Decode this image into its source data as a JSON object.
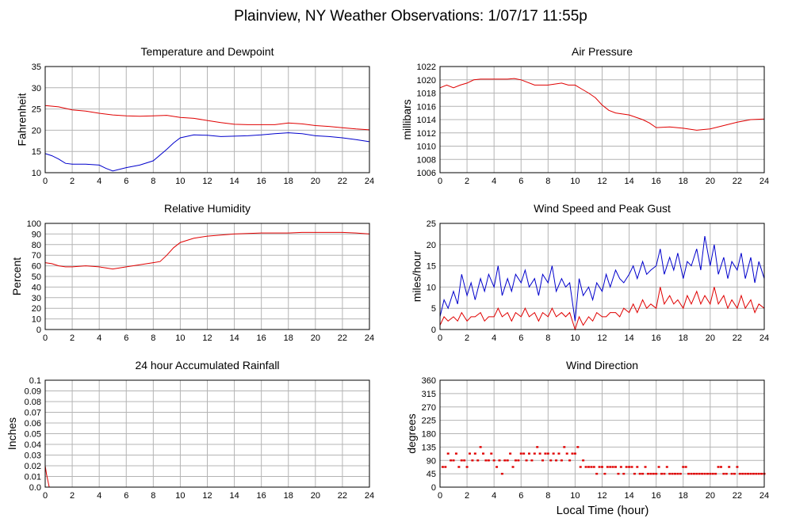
{
  "page_title": "Plainview, NY Weather Observations: 1/07/17 11:55p",
  "x_axis_label": "Local Time (hour)",
  "colors": {
    "red": "#e00000",
    "blue": "#0000cc",
    "grid": "#b4b4b4",
    "frame": "#000000"
  },
  "chart_data": [
    {
      "id": "temp",
      "type": "line",
      "title": "Temperature and Dewpoint",
      "ylabel": "Fahrenheit",
      "xlim": [
        0,
        24
      ],
      "ylim": [
        10,
        35
      ],
      "xticks": [
        0,
        2,
        4,
        6,
        8,
        10,
        12,
        14,
        16,
        18,
        20,
        22,
        24
      ],
      "yticks": [
        "10",
        "15",
        "20",
        "25",
        "30",
        "35"
      ],
      "series": [
        {
          "color": "red",
          "x": [
            0,
            1,
            2,
            3,
            4,
            5,
            6,
            7,
            8,
            9,
            10,
            11,
            12,
            13,
            14,
            15,
            16,
            17,
            18,
            19,
            20,
            21,
            22,
            23,
            24
          ],
          "values": [
            25.8,
            25.5,
            24.8,
            24.5,
            24,
            23.6,
            23.4,
            23.3,
            23.4,
            23.5,
            23,
            22.8,
            22.3,
            21.8,
            21.4,
            21.3,
            21.3,
            21.3,
            21.7,
            21.5,
            21.1,
            20.9,
            20.6,
            20.3,
            20.1
          ]
        },
        {
          "color": "blue",
          "x": [
            0,
            0.5,
            1,
            1.5,
            2,
            3,
            4,
            4.5,
            5,
            6,
            7,
            8,
            9,
            9.5,
            10,
            11,
            12,
            13,
            14,
            15,
            16,
            17,
            18,
            19,
            20,
            21,
            22,
            23,
            24
          ],
          "values": [
            14.5,
            14,
            13.2,
            12.2,
            12,
            12,
            11.8,
            11,
            10.4,
            11.2,
            11.8,
            12.8,
            15.5,
            17,
            18.2,
            18.9,
            18.8,
            18.5,
            18.6,
            18.7,
            18.9,
            19.2,
            19.4,
            19.2,
            18.7,
            18.5,
            18.2,
            17.8,
            17.3
          ]
        }
      ]
    },
    {
      "id": "pressure",
      "type": "line",
      "title": "Air Pressure",
      "ylabel": "millibars",
      "xlim": [
        0,
        24
      ],
      "ylim": [
        1006,
        1022
      ],
      "xticks": [
        0,
        2,
        4,
        6,
        8,
        10,
        12,
        14,
        16,
        18,
        20,
        22,
        24
      ],
      "yticks": [
        "1006",
        "1008",
        "1010",
        "1012",
        "1014",
        "1016",
        "1018",
        "1020",
        "1022"
      ],
      "series": [
        {
          "color": "red",
          "x": [
            0,
            0.5,
            1,
            1.5,
            2,
            2.5,
            3,
            4,
            5,
            5.5,
            6,
            7,
            8,
            9,
            9.5,
            10,
            10.5,
            11,
            11.5,
            12,
            12.5,
            13,
            14,
            15,
            15.5,
            16,
            17,
            18,
            19,
            20,
            21,
            22,
            23,
            24
          ],
          "values": [
            1018.8,
            1019.2,
            1018.8,
            1019.2,
            1019.5,
            1020,
            1020.1,
            1020.1,
            1020.1,
            1020.2,
            1020,
            1019.2,
            1019.2,
            1019.5,
            1019.2,
            1019.2,
            1018.6,
            1018,
            1017.3,
            1016.2,
            1015.4,
            1015,
            1014.7,
            1014,
            1013.5,
            1012.8,
            1012.9,
            1012.7,
            1012.4,
            1012.6,
            1013.1,
            1013.6,
            1014,
            1014.1
          ]
        }
      ]
    },
    {
      "id": "humidity",
      "type": "line",
      "title": "Relative Humidity",
      "ylabel": "Percent",
      "xlim": [
        0,
        24
      ],
      "ylim": [
        0,
        100
      ],
      "xticks": [
        0,
        2,
        4,
        6,
        8,
        10,
        12,
        14,
        16,
        18,
        20,
        22,
        24
      ],
      "yticks": [
        "0",
        "10",
        "20",
        "30",
        "40",
        "50",
        "60",
        "70",
        "80",
        "90",
        "100"
      ],
      "series": [
        {
          "color": "red",
          "x": [
            0,
            0.5,
            1,
            1.5,
            2,
            3,
            4,
            4.5,
            5,
            6,
            7,
            8,
            8.5,
            9,
            9.5,
            10,
            11,
            12,
            13,
            14,
            15,
            16,
            17,
            18,
            19,
            20,
            21,
            22,
            23,
            24
          ],
          "values": [
            63,
            62,
            60,
            59,
            59,
            60,
            59,
            58,
            57,
            59,
            61,
            63,
            64,
            70,
            77,
            82,
            86,
            88,
            89,
            90,
            90.5,
            91,
            91,
            91,
            91.5,
            91.5,
            91.5,
            91.5,
            91,
            90
          ]
        }
      ]
    },
    {
      "id": "wind",
      "type": "line",
      "title": "Wind Speed and Peak Gust",
      "ylabel": "miles/hour",
      "xlim": [
        0,
        24
      ],
      "ylim": [
        0,
        25
      ],
      "xticks": [
        0,
        2,
        4,
        6,
        8,
        10,
        12,
        14,
        16,
        18,
        20,
        22,
        24
      ],
      "yticks": [
        "0",
        "5",
        "10",
        "15",
        "20",
        "25"
      ],
      "series": [
        {
          "color": "blue",
          "x": [
            0,
            0.3,
            0.6,
            1,
            1.3,
            1.6,
            2,
            2.3,
            2.6,
            3,
            3.3,
            3.6,
            4,
            4.3,
            4.6,
            5,
            5.3,
            5.6,
            6,
            6.3,
            6.6,
            7,
            7.3,
            7.6,
            8,
            8.3,
            8.6,
            9,
            9.3,
            9.6,
            10,
            10.3,
            10.6,
            11,
            11.3,
            11.6,
            12,
            12.3,
            12.6,
            13,
            13.3,
            13.6,
            14,
            14.3,
            14.6,
            15,
            15.3,
            15.6,
            16,
            16.3,
            16.6,
            17,
            17.3,
            17.6,
            18,
            18.3,
            18.6,
            19,
            19.3,
            19.6,
            20,
            20.3,
            20.6,
            21,
            21.3,
            21.6,
            22,
            22.3,
            22.6,
            23,
            23.3,
            23.6,
            24
          ],
          "values": [
            3,
            7,
            5,
            9,
            6,
            13,
            8,
            11,
            7,
            12,
            9,
            13,
            10,
            15,
            8,
            12,
            9,
            13,
            11,
            14,
            10,
            12,
            8,
            13,
            11,
            15,
            9,
            12,
            10,
            11,
            2,
            12,
            8,
            10,
            7,
            11,
            9,
            13,
            10,
            14,
            12,
            11,
            13,
            15,
            12,
            16,
            13,
            14,
            15,
            19,
            13,
            17,
            14,
            18,
            12,
            16,
            15,
            19,
            14,
            22,
            15,
            20,
            13,
            17,
            12,
            16,
            14,
            18,
            12,
            17,
            11,
            16,
            12
          ]
        },
        {
          "color": "red",
          "x": [
            0,
            0.3,
            0.6,
            1,
            1.3,
            1.6,
            2,
            2.3,
            2.6,
            3,
            3.3,
            3.6,
            4,
            4.3,
            4.6,
            5,
            5.3,
            5.6,
            6,
            6.3,
            6.6,
            7,
            7.3,
            7.6,
            8,
            8.3,
            8.6,
            9,
            9.3,
            9.6,
            10,
            10.3,
            10.6,
            11,
            11.3,
            11.6,
            12,
            12.3,
            12.6,
            13,
            13.3,
            13.6,
            14,
            14.3,
            14.6,
            15,
            15.3,
            15.6,
            16,
            16.3,
            16.6,
            17,
            17.3,
            17.6,
            18,
            18.3,
            18.6,
            19,
            19.3,
            19.6,
            20,
            20.3,
            20.6,
            21,
            21.3,
            21.6,
            22,
            22.3,
            22.6,
            23,
            23.3,
            23.6,
            24
          ],
          "values": [
            1,
            3,
            2,
            3,
            2,
            4,
            2,
            3,
            3,
            4,
            2,
            3,
            3,
            5,
            3,
            4,
            2,
            4,
            3,
            5,
            3,
            4,
            2,
            4,
            3,
            5,
            3,
            4,
            3,
            4,
            0,
            3,
            1,
            3,
            2,
            4,
            3,
            3,
            4,
            4,
            3,
            5,
            4,
            6,
            4,
            7,
            5,
            6,
            5,
            10,
            6,
            8,
            6,
            7,
            5,
            8,
            6,
            9,
            6,
            8,
            6,
            10,
            6,
            8,
            5,
            7,
            5,
            8,
            5,
            7,
            4,
            6,
            5
          ]
        }
      ]
    },
    {
      "id": "rain",
      "type": "line",
      "title": "24 hour Accumulated Rainfall",
      "ylabel": "Inches",
      "xlim": [
        0,
        24
      ],
      "ylim": [
        0,
        0.1
      ],
      "xticks": [
        0,
        2,
        4,
        6,
        8,
        10,
        12,
        14,
        16,
        18,
        20,
        22,
        24
      ],
      "yticks": [
        "0.0",
        "0.01",
        "0.02",
        "0.03",
        "0.04",
        "0.05",
        "0.06",
        "0.07",
        "0.08",
        "0.09",
        "0.1"
      ],
      "series": [
        {
          "color": "red",
          "x": [
            0,
            0.1,
            0.3,
            24
          ],
          "values": [
            0.02,
            0.012,
            0,
            0
          ]
        }
      ]
    },
    {
      "id": "direction",
      "type": "scatter",
      "title": "Wind Direction",
      "ylabel": "degrees",
      "xlabel": "Local Time (hour)",
      "xlim": [
        0,
        24
      ],
      "ylim": [
        0,
        360
      ],
      "xticks": [
        0,
        2,
        4,
        6,
        8,
        10,
        12,
        14,
        16,
        18,
        20,
        22,
        24
      ],
      "yticks": [
        "0",
        "45",
        "90",
        "135",
        "180",
        "225",
        "270",
        "315",
        "360"
      ],
      "series": [
        {
          "color": "red",
          "x": [
            0.2,
            0.4,
            0.6,
            0.8,
            1.0,
            1.2,
            1.4,
            1.6,
            1.8,
            2.0,
            2.2,
            2.4,
            2.6,
            2.8,
            3.0,
            3.2,
            3.4,
            3.6,
            3.8,
            4.0,
            4.2,
            4.4,
            4.6,
            4.8,
            5.0,
            5.2,
            5.4,
            5.6,
            5.8,
            6.0,
            6.2,
            6.4,
            6.6,
            6.8,
            7.0,
            7.2,
            7.4,
            7.6,
            7.8,
            8.0,
            8.2,
            8.4,
            8.6,
            8.8,
            9.0,
            9.2,
            9.4,
            9.6,
            9.8,
            10.0,
            10.2,
            10.4,
            10.6,
            10.8,
            11.0,
            11.2,
            11.4,
            11.6,
            11.8,
            12.0,
            12.2,
            12.4,
            12.6,
            12.8,
            13.0,
            13.2,
            13.4,
            13.6,
            13.8,
            14.0,
            14.2,
            14.4,
            14.6,
            14.8,
            15.0,
            15.2,
            15.4,
            15.6,
            15.8,
            16.0,
            16.2,
            16.4,
            16.6,
            16.8,
            17.0,
            17.2,
            17.4,
            17.6,
            17.8,
            18.0,
            18.2,
            18.4,
            18.6,
            18.8,
            19.0,
            19.2,
            19.4,
            19.6,
            19.8,
            20.0,
            20.2,
            20.4,
            20.6,
            20.8,
            21.0,
            21.2,
            21.4,
            21.6,
            21.8,
            22.0,
            22.2,
            22.4,
            22.6,
            22.8,
            23.0,
            23.2,
            23.4,
            23.6,
            23.8,
            24.0
          ],
          "values": [
            68,
            68,
            113,
            90,
            90,
            113,
            68,
            90,
            90,
            68,
            113,
            90,
            113,
            90,
            135,
            113,
            90,
            90,
            113,
            90,
            68,
            90,
            45,
            90,
            90,
            113,
            68,
            90,
            90,
            113,
            113,
            90,
            113,
            90,
            113,
            135,
            113,
            90,
            113,
            113,
            90,
            113,
            90,
            113,
            90,
            135,
            113,
            90,
            113,
            113,
            135,
            68,
            90,
            68,
            68,
            68,
            68,
            45,
            68,
            68,
            45,
            68,
            68,
            68,
            68,
            45,
            68,
            45,
            68,
            68,
            68,
            45,
            68,
            45,
            45,
            68,
            45,
            45,
            45,
            45,
            68,
            45,
            45,
            68,
            45,
            45,
            45,
            45,
            45,
            68,
            68,
            45,
            45,
            45,
            45,
            45,
            45,
            45,
            45,
            45,
            45,
            45,
            68,
            68,
            45,
            45,
            68,
            45,
            45,
            68,
            45,
            45,
            45,
            45,
            45,
            45,
            45,
            45,
            45,
            45
          ]
        }
      ]
    }
  ]
}
